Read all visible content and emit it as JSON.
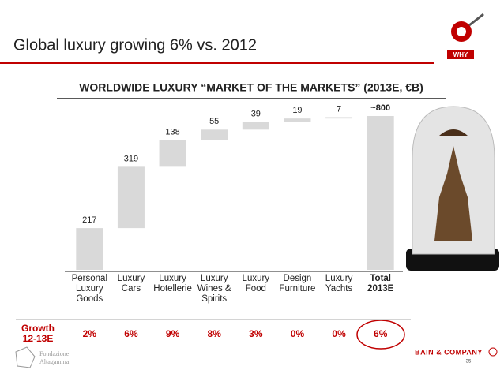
{
  "title": "Global luxury growing 6% vs. 2012",
  "logo": "WHY",
  "chart_data": {
    "type": "waterfall",
    "title": "WORLDWIDE LUXURY “MARKET OF THE MARKETS” (2013E, €B)",
    "categories": [
      "Personal Luxury Goods",
      "Luxury Cars",
      "Luxury Hotellerie",
      "Luxury Wines & Spirits",
      "Luxury Food",
      "Design Furniture",
      "Luxury Yachts",
      "Total 2013E"
    ],
    "values": [
      217,
      319,
      138,
      55,
      39,
      19,
      7,
      800
    ],
    "value_labels": [
      "217",
      "319",
      "138",
      "55",
      "39",
      "19",
      "7",
      "~800"
    ],
    "color": "#d9d9d9"
  },
  "growth": {
    "label_lines": [
      "Growth",
      "12-13E"
    ],
    "values": [
      "2%",
      "6%",
      "9%",
      "8%",
      "3%",
      "0%",
      "0%",
      "6%"
    ]
  },
  "footer": {
    "company": "BAIN & COMPANY",
    "page": "35",
    "partner_lines": [
      "Fondazione",
      "Altagamma"
    ]
  }
}
